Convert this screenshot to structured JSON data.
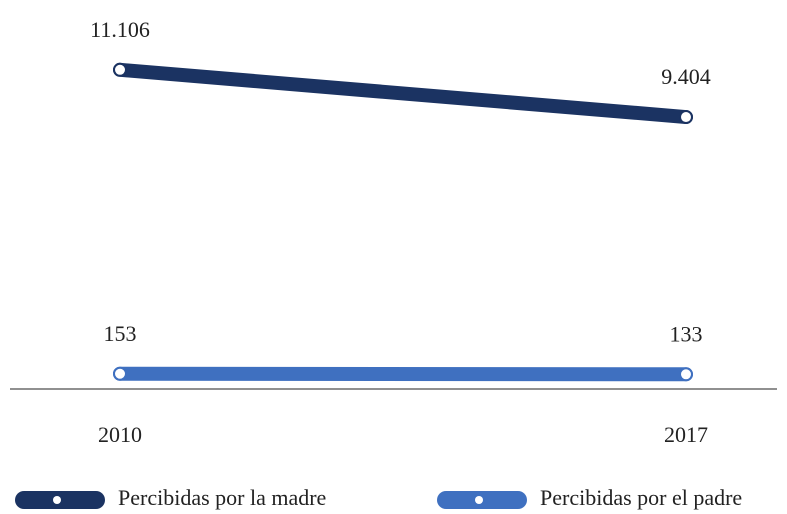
{
  "chart_data": {
    "type": "line",
    "categories": [
      "2010",
      "2017"
    ],
    "series": [
      {
        "name": "Percibidas por la madre",
        "color": "#1b3362",
        "values": [
          11106,
          9404
        ],
        "value_labels": [
          "11.106",
          "9.404"
        ]
      },
      {
        "name": "Percibidas por el padre",
        "color": "#3f70c0",
        "values": [
          153,
          133
        ],
        "value_labels": [
          "153",
          "133"
        ]
      }
    ],
    "ylim": [
      0,
      12000
    ]
  }
}
